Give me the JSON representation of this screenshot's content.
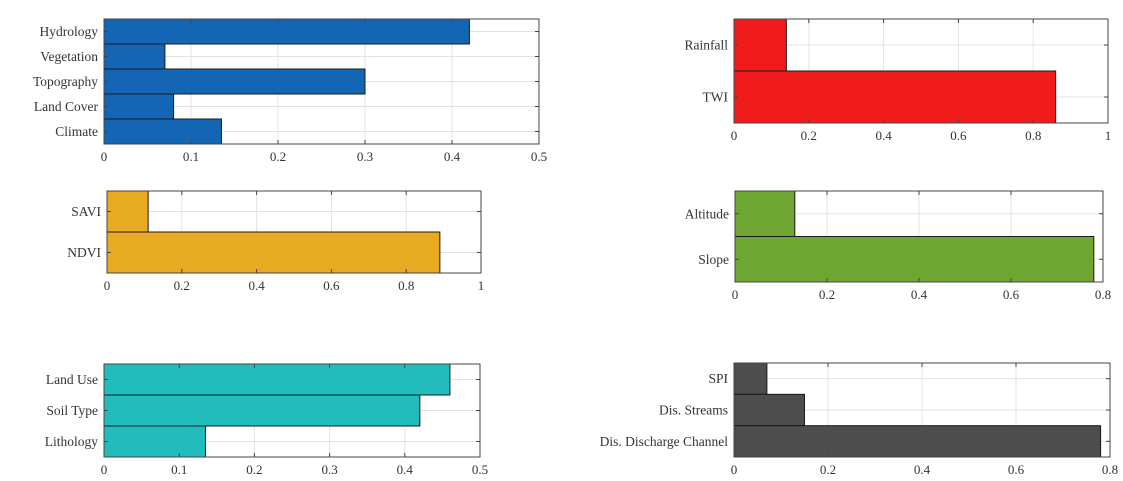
{
  "chart_data": [
    {
      "type": "bar",
      "orientation": "horizontal",
      "color": "#1565b5",
      "categories": [
        "Hydrology",
        "Vegetation",
        "Topography",
        "Land Cover",
        "Climate"
      ],
      "values": [
        0.42,
        0.07,
        0.3,
        0.08,
        0.135
      ],
      "xlim": [
        0,
        0.5
      ],
      "xticks": [
        "0",
        "0.1",
        "0.2",
        "0.3",
        "0.4",
        "0.5"
      ],
      "grid": true
    },
    {
      "type": "bar",
      "orientation": "horizontal",
      "color": "#f01c1c",
      "categories": [
        "Rainfall",
        "TWI"
      ],
      "values": [
        0.14,
        0.86
      ],
      "xlim": [
        0,
        1
      ],
      "xticks": [
        "0",
        "0.2",
        "0.4",
        "0.6",
        "0.8",
        "1"
      ],
      "grid": true
    },
    {
      "type": "bar",
      "orientation": "horizontal",
      "color": "#e8aa22",
      "categories": [
        "SAVI",
        "NDVI"
      ],
      "values": [
        0.11,
        0.89
      ],
      "xlim": [
        0,
        1
      ],
      "xticks": [
        "0",
        "0.2",
        "0.4",
        "0.6",
        "0.8",
        "1"
      ],
      "grid": true
    },
    {
      "type": "bar",
      "orientation": "horizontal",
      "color": "#6fa533",
      "categories": [
        "Altitude",
        "Slope"
      ],
      "values": [
        0.13,
        0.78
      ],
      "xlim": [
        0,
        0.8
      ],
      "xticks": [
        "0",
        "0.2",
        "0.4",
        "0.6",
        "0.8"
      ],
      "grid": true
    },
    {
      "type": "bar",
      "orientation": "horizontal",
      "color": "#22bcbc",
      "categories": [
        "Land Use",
        "Soil Type",
        "Lithology"
      ],
      "values": [
        0.46,
        0.42,
        0.135
      ],
      "xlim": [
        0,
        0.5
      ],
      "xticks": [
        "0",
        "0.1",
        "0.2",
        "0.3",
        "0.4",
        "0.5"
      ],
      "grid": true
    },
    {
      "type": "bar",
      "orientation": "horizontal",
      "color": "#4d4d4d",
      "categories": [
        "SPI",
        "Dis. Streams",
        "Dis. Discharge Channel"
      ],
      "values": [
        0.07,
        0.15,
        0.78
      ],
      "xlim": [
        0,
        0.8
      ],
      "xticks": [
        "0",
        "0.2",
        "0.4",
        "0.6",
        "0.8"
      ],
      "grid": true
    }
  ]
}
